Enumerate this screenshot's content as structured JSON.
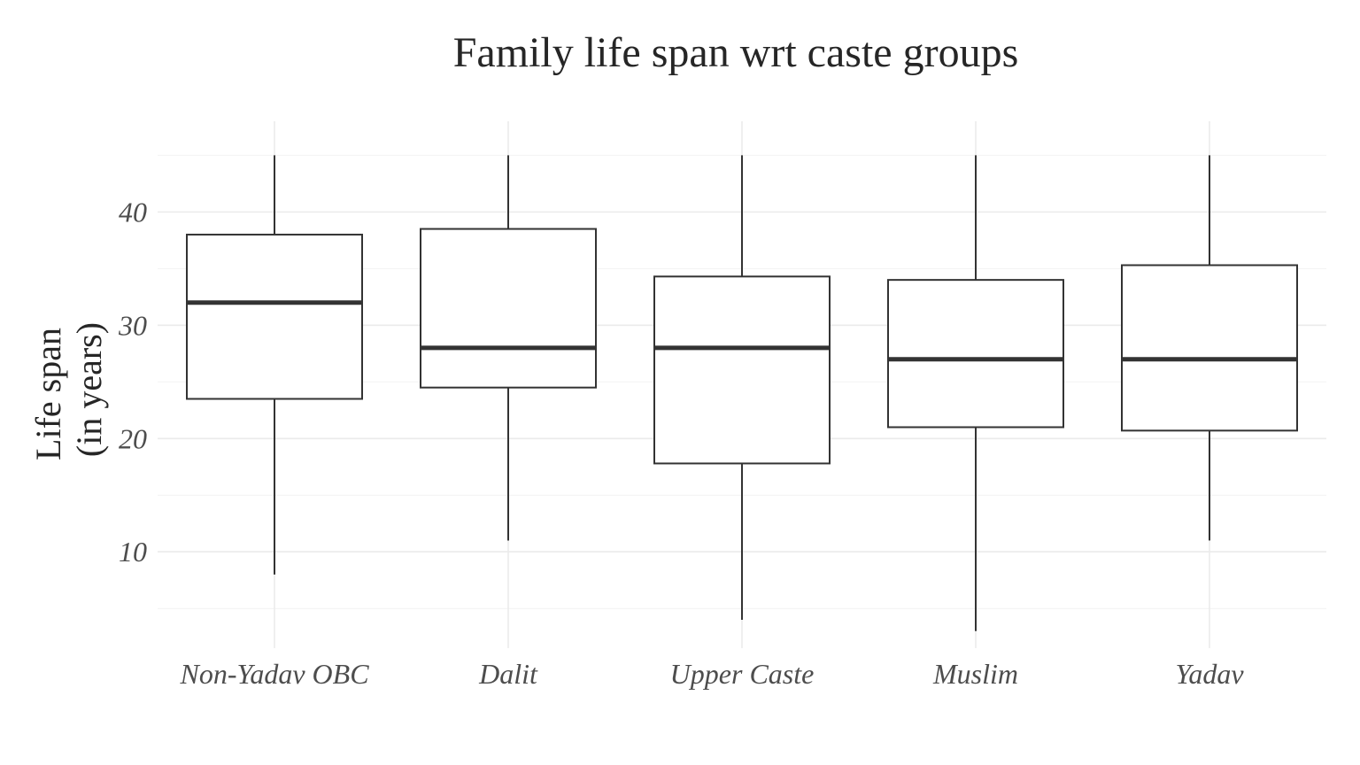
{
  "chart_data": {
    "type": "boxplot",
    "title": "Family life span wrt caste groups",
    "xlabel": "",
    "ylabel": [
      "Life span",
      "(in years)"
    ],
    "ylim": [
      1.5,
      48
    ],
    "yticks": [
      10,
      20,
      30,
      40
    ],
    "grid": true,
    "legend": "none",
    "categories": [
      "Non-Yadav OBC",
      "Dalit",
      "Upper Caste",
      "Muslim",
      "Yadav"
    ],
    "boxes": [
      {
        "category": "Non-Yadav OBC",
        "min": 8,
        "q1": 23.5,
        "median": 32,
        "q3": 38,
        "max": 45
      },
      {
        "category": "Dalit",
        "min": 11,
        "q1": 24.5,
        "median": 28,
        "q3": 38.5,
        "max": 45
      },
      {
        "category": "Upper Caste",
        "min": 4,
        "q1": 17.8,
        "median": 28,
        "q3": 34.3,
        "max": 45
      },
      {
        "category": "Muslim",
        "min": 3,
        "q1": 21,
        "median": 27,
        "q3": 34,
        "max": 45
      },
      {
        "category": "Yadav",
        "min": 11,
        "q1": 20.7,
        "median": 27,
        "q3": 35.3,
        "max": 45
      }
    ],
    "colors": {
      "box_line": "#333333",
      "box_fill": "#ffffff",
      "grid": "#ebebeb",
      "text": "#262626",
      "tick_text": "#4d4d4d"
    }
  }
}
